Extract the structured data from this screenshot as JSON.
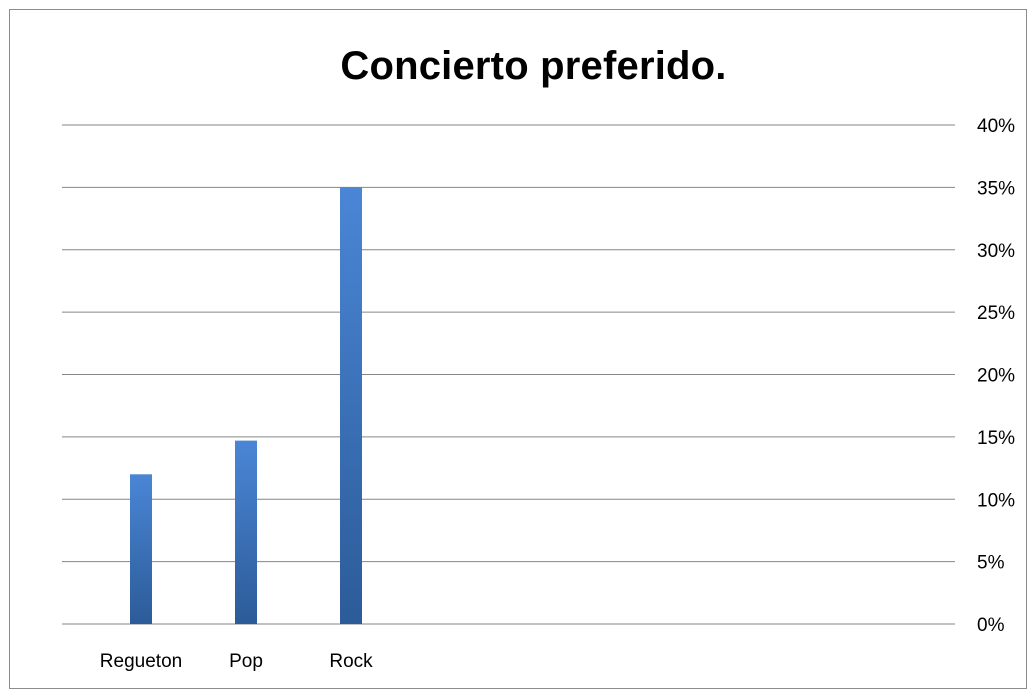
{
  "chart_data": {
    "type": "bar",
    "title": "Concierto preferido.",
    "categories": [
      "Regueton",
      "Pop",
      "Rock"
    ],
    "values": [
      12,
      14.7,
      35
    ],
    "value_format": "percent",
    "ylim": [
      0,
      40
    ],
    "y_ticks": [
      "0%",
      "5%",
      "10%",
      "15%",
      "20%",
      "25%",
      "30%",
      "35%",
      "40%"
    ],
    "y_axis_side": "right",
    "grid": true,
    "legend": "none",
    "bar_color_top": "#4a86d6",
    "bar_color_bottom": "#2c5b98",
    "grid_color": "#868686"
  }
}
